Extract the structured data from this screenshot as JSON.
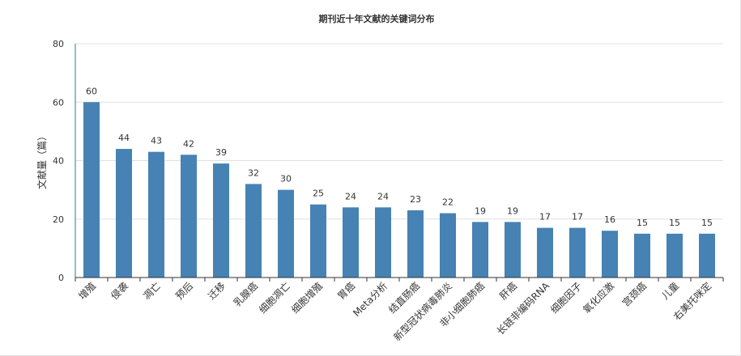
{
  "chart_data": {
    "type": "bar",
    "title": "期刊近十年文献的关键词分布",
    "xlabel": "",
    "ylabel": "文献量（篇）",
    "ylim": [
      0,
      80
    ],
    "yticks": [
      0,
      20,
      40,
      60,
      80
    ],
    "grid": true,
    "bar_color": "#4682b4",
    "categories": [
      "增殖",
      "侵袭",
      "凋亡",
      "预后",
      "迁移",
      "乳腺癌",
      "细胞凋亡",
      "细胞增殖",
      "胃癌",
      "Meta分析",
      "结直肠癌",
      "新型冠状病毒肺炎",
      "非小细胞肺癌",
      "肝癌",
      "长链非编码RNA",
      "细胞因子",
      "氧化应激",
      "宫颈癌",
      "儿童",
      "右美托咪定"
    ],
    "values": [
      60,
      44,
      43,
      42,
      39,
      32,
      30,
      25,
      24,
      24,
      23,
      22,
      19,
      19,
      17,
      17,
      16,
      15,
      15,
      15
    ]
  }
}
